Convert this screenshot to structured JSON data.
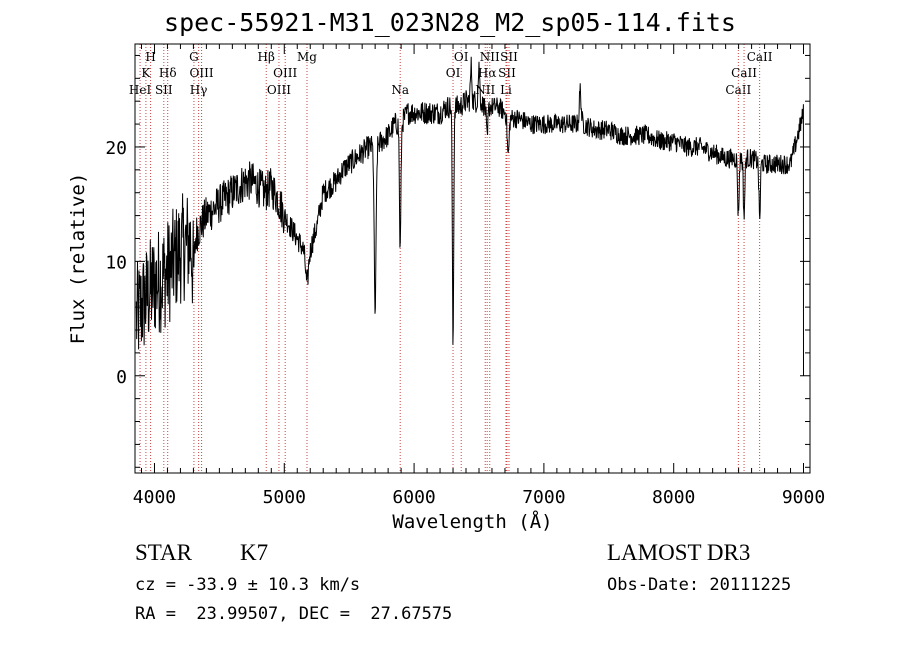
{
  "chart_data": {
    "type": "line",
    "title": "spec-55921-M31_023N28_M2_sp05-114.fits",
    "xlabel": "Wavelength (Å)",
    "ylabel": "Flux (relative)",
    "xlim": [
      3850,
      9050
    ],
    "ylim": [
      -8.5,
      29
    ],
    "x_ticks": [
      4000,
      5000,
      6000,
      7000,
      8000,
      9000
    ],
    "y_ticks": [
      0,
      10,
      20
    ],
    "spectrum_anchors": [
      [
        3860,
        5
      ],
      [
        3900,
        6
      ],
      [
        3950,
        7
      ],
      [
        4000,
        8
      ],
      [
        4050,
        8.5
      ],
      [
        4100,
        9
      ],
      [
        4150,
        10
      ],
      [
        4200,
        11
      ],
      [
        4250,
        11.5
      ],
      [
        4300,
        12
      ],
      [
        4350,
        13
      ],
      [
        4400,
        14
      ],
      [
        4450,
        14.5
      ],
      [
        4500,
        15
      ],
      [
        4550,
        15.5
      ],
      [
        4600,
        16
      ],
      [
        4650,
        16.5
      ],
      [
        4700,
        17
      ],
      [
        4750,
        17
      ],
      [
        4800,
        16.5
      ],
      [
        4850,
        16
      ],
      [
        4900,
        16.5
      ],
      [
        4950,
        15.5
      ],
      [
        5000,
        14
      ],
      [
        5050,
        13
      ],
      [
        5100,
        12
      ],
      [
        5150,
        11
      ],
      [
        5200,
        11
      ],
      [
        5250,
        13
      ],
      [
        5300,
        16
      ],
      [
        5350,
        16.5
      ],
      [
        5400,
        17
      ],
      [
        5450,
        18
      ],
      [
        5500,
        18.5
      ],
      [
        5550,
        19
      ],
      [
        5600,
        19.5
      ],
      [
        5650,
        20
      ],
      [
        5700,
        20
      ],
      [
        5750,
        20.5
      ],
      [
        5800,
        21
      ],
      [
        5850,
        22
      ],
      [
        5900,
        22
      ],
      [
        5950,
        23
      ],
      [
        6000,
        23
      ],
      [
        6050,
        23
      ],
      [
        6100,
        23
      ],
      [
        6150,
        23
      ],
      [
        6200,
        23
      ],
      [
        6250,
        23.5
      ],
      [
        6300,
        23.5
      ],
      [
        6350,
        23.5
      ],
      [
        6400,
        24
      ],
      [
        6450,
        24
      ],
      [
        6500,
        24
      ],
      [
        6550,
        23.5
      ],
      [
        6600,
        23.5
      ],
      [
        6650,
        23.5
      ],
      [
        6700,
        23
      ],
      [
        6750,
        22.5
      ],
      [
        6800,
        22.5
      ],
      [
        6900,
        22
      ],
      [
        7000,
        22
      ],
      [
        7100,
        22
      ],
      [
        7200,
        22
      ],
      [
        7300,
        22
      ],
      [
        7400,
        21.5
      ],
      [
        7500,
        21.5
      ],
      [
        7600,
        21
      ],
      [
        7700,
        21
      ],
      [
        7800,
        21
      ],
      [
        7900,
        20.5
      ],
      [
        8000,
        20.5
      ],
      [
        8100,
        20
      ],
      [
        8200,
        20
      ],
      [
        8300,
        19.5
      ],
      [
        8400,
        19
      ],
      [
        8500,
        19
      ],
      [
        8600,
        19
      ],
      [
        8700,
        18.5
      ],
      [
        8800,
        18.5
      ],
      [
        8900,
        18.5
      ],
      [
        9000,
        23
      ]
    ],
    "absorption_features": [
      {
        "center": 5700,
        "depth": 14.5,
        "width": 10
      },
      {
        "center": 5893,
        "depth": 11,
        "width": 8
      },
      {
        "center": 6300,
        "depth": 21,
        "width": 7
      },
      {
        "center": 6563,
        "depth": 3,
        "width": 8
      },
      {
        "center": 6725,
        "depth": 3.5,
        "width": 10
      },
      {
        "center": 5175,
        "depth": 3,
        "width": 15
      },
      {
        "center": 4300,
        "depth": 3,
        "width": 12
      },
      {
        "center": 8498,
        "depth": 5,
        "width": 8
      },
      {
        "center": 8542,
        "depth": 5,
        "width": 8
      },
      {
        "center": 8662,
        "depth": 5,
        "width": 8
      }
    ],
    "emission_features": [
      {
        "center": 6440,
        "height": 3,
        "width": 8
      },
      {
        "center": 6500,
        "height": 3,
        "width": 8
      },
      {
        "center": 7280,
        "height": 3,
        "width": 10
      }
    ],
    "line_markers": [
      {
        "wavelength": 3889,
        "label": "HeI",
        "row": 3
      },
      {
        "wavelength": 3934,
        "label": "K",
        "row": 2
      },
      {
        "wavelength": 3970,
        "label": "H",
        "row": 1
      },
      {
        "wavelength": 4072,
        "label": "SII",
        "row": 3
      },
      {
        "wavelength": 4102,
        "label": "Hδ",
        "row": 2
      },
      {
        "wavelength": 4304,
        "label": "G",
        "row": 1
      },
      {
        "wavelength": 4340,
        "label": "Hγ",
        "row": 3
      },
      {
        "wavelength": 4363,
        "label": "OIII",
        "row": 2
      },
      {
        "wavelength": 4861,
        "label": "Hβ",
        "row": 1
      },
      {
        "wavelength": 4959,
        "label": "OIII",
        "row": 3
      },
      {
        "wavelength": 5007,
        "label": "OIII",
        "row": 2
      },
      {
        "wavelength": 5175,
        "label": "Mg",
        "row": 1
      },
      {
        "wavelength": 5893,
        "label": "Na",
        "row": 3
      },
      {
        "wavelength": 6300,
        "label": "OI",
        "row": 2
      },
      {
        "wavelength": 6363,
        "label": "OI",
        "row": 1
      },
      {
        "wavelength": 6548,
        "label": "NII",
        "row": 3
      },
      {
        "wavelength": 6563,
        "label": "Hα",
        "row": 2
      },
      {
        "wavelength": 6583,
        "label": "NII",
        "row": 1
      },
      {
        "wavelength": 6708,
        "label": "Li",
        "row": 3
      },
      {
        "wavelength": 6716,
        "label": "SII",
        "row": 2
      },
      {
        "wavelength": 6731,
        "label": "SII",
        "row": 1
      },
      {
        "wavelength": 8498,
        "label": "CaII",
        "row": 3
      },
      {
        "wavelength": 8542,
        "label": "CaII",
        "row": 2
      },
      {
        "wavelength": 8662,
        "label": "CaII",
        "row": 1
      }
    ]
  },
  "info": {
    "class": "STAR",
    "subclass": "K7",
    "survey": "LAMOST DR3",
    "cz": "cz = -33.9 ± 10.3 km/s",
    "obs_date": "Obs-Date: 20111225",
    "radec": "RA =  23.99507, DEC =  27.67575"
  },
  "colors": {
    "axis": "#000000",
    "line_marker": "#cc4444"
  }
}
